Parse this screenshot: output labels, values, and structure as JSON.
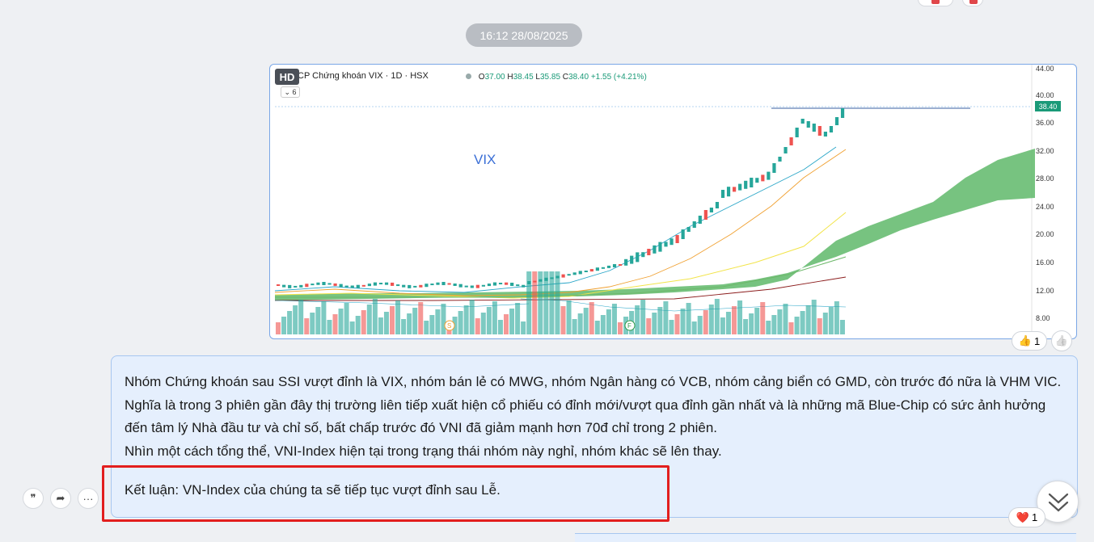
{
  "timestamp": "16:12 28/08/2025",
  "image_message": {
    "hd_badge": "HD",
    "chart": {
      "title": "CP Chứng khoán VIX · 1D · HSX",
      "ohlc": {
        "o_label": "O",
        "o": "37.00",
        "h_label": "H",
        "h": "38.45",
        "l_label": "L",
        "l": "35.85",
        "c_label": "C",
        "c": "38.40",
        "change": "+1.55 (+4.21%)"
      },
      "interval_selector": "6",
      "annotation": "VIX",
      "last_price": "38.40",
      "axis_labels": [
        "44.00",
        "40.00",
        "36.00",
        "32.00",
        "28.00",
        "24.00",
        "20.00",
        "16.00",
        "12.00",
        "8.00"
      ],
      "event_markers": [
        "S",
        "F"
      ],
      "colors": {
        "up": "#26a69a",
        "down": "#ef5350",
        "cloud": "#5fb86a",
        "ma_fast": "#2aa6c8",
        "ma_mid": "#f0a030",
        "ma_slow": "#f2e44a",
        "ma_long": "#8b1c1c"
      }
    },
    "reaction": {
      "emoji": "👍",
      "count": "1"
    },
    "like_icon": "👍"
  },
  "text_message": {
    "paragraph": "Nhóm Chứng khoán sau SSI vượt đỉnh là VIX, nhóm bán lẻ có MWG, nhóm Ngân hàng có VCB,  nhóm cảng biển có GMD, còn trước đó nữa là VHM VIC. Nghĩa là trong 3 phiên gần đây thị trường liên tiếp xuất hiện cổ phiếu có đỉnh mới/vượt qua đỉnh gần nhất và là những mã Blue-Chip có sức ảnh hưởng đến tâm lý Nhà đầu tư và chỉ số, bất chấp trước đó VNI đã giảm mạnh hơn 70đ chỉ trong 2 phiên.\nNhìn một cách tổng thể, VNI-Index hiện tại trong trạng thái nhóm này nghỉ, nhóm khác sẽ lên thay.",
    "conclusion": "Kết luận: VN-Index của chúng ta sẽ tiếp tục vượt đỉnh sau Lễ.",
    "reaction": {
      "emoji": "❤️",
      "count": "1"
    }
  },
  "actions": {
    "quote_icon": "❞",
    "forward_icon": "➦",
    "more_icon": "···"
  }
}
